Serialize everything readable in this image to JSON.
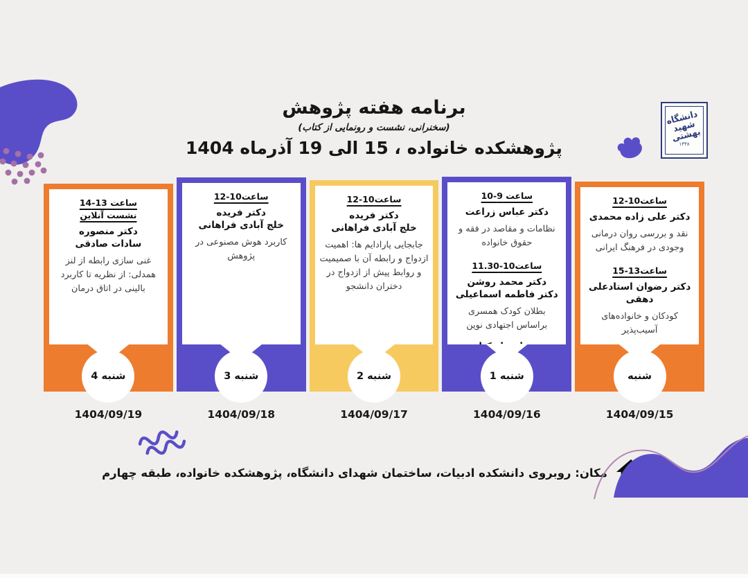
{
  "poster": {
    "header": {
      "title": "برنامه هفته پژوهش",
      "subtitle": "(سخنرانی، نشست و رونمایی از کتاب)",
      "subject_line": "پژوهشکده خانواده ، 15 الی 19 آذرماه 1404"
    },
    "logo": {
      "university_lines": [
        "دانشگاه",
        "شهید",
        "بهشتی"
      ],
      "year": "۱۳۳۸"
    },
    "cards": [
      {
        "day": "شنبه",
        "date": "1404/09/15",
        "color": "orange",
        "sessions": [
          {
            "time": "ساعت10-12",
            "speakers": [
              "دکتر علی زاده محمدی"
            ],
            "topic": "نقد و بررسی روان درمانی وجودی در فرهنگ ایرانی"
          },
          {
            "time": "ساعت13-15",
            "speakers": [
              "دکتر رضوان استادعلی دهقی"
            ],
            "topic": "کودکان و خانواده‌های آسیب‌پذیر"
          }
        ]
      },
      {
        "day": "1 شنبه",
        "date": "1404/09/16",
        "color": "purple",
        "sessions": [
          {
            "time": "ساعت 9-10",
            "speakers": [
              "دکتر عباس زراعت"
            ],
            "topic": "نظامات و مقاصد در فقه و حقوق خانواده"
          },
          {
            "time": "ساعت10-11.30",
            "speakers": [
              "دکتر محمد روشن",
              "دکتر فاطمه اسماعیلی"
            ],
            "topic": "بطلان کودک همسری براساس اجتهادی نوین",
            "footnote": "رونمایی از کتاب"
          }
        ]
      },
      {
        "day": "2 شنبه",
        "date": "1404/09/17",
        "color": "yellow",
        "sessions": [
          {
            "time": "ساعت10-12",
            "speakers": [
              "دکتر فریده",
              "خلج آبادی فراهانی"
            ],
            "topic": "جابجایی پارادایم ها: اهمیت ازدواج و رابطه آن با صمیمیت و روابط پیش از ازدواج در دختران دانشجو"
          }
        ]
      },
      {
        "day": "3 شنبه",
        "date": "1404/09/18",
        "color": "purple",
        "sessions": [
          {
            "time": "ساعت10-12",
            "speakers": [
              "دکتر فریده",
              "خلج آبادی فراهانی"
            ],
            "topic": "کاربرد هوش مصنوعی در پژوهش"
          }
        ]
      },
      {
        "day": "4 شنبه",
        "date": "1404/09/19",
        "color": "orange",
        "sessions": [
          {
            "time": "ساعت 13-14",
            "time2": "نشست آنلاین",
            "speakers": [
              "دکتر منصوره",
              "سادات صادقی"
            ],
            "topic": "غنی سازی رابطه از لنز همدلی: از نظریه تا کاربرد بالینی در اتاق درمان"
          }
        ]
      }
    ],
    "footer": {
      "location": "مکان: روبروی دانشکده ادبیات، ساختمان شهدای دانشگاه، پژوهشکده خانواده، طبقه چهارم"
    },
    "colors": {
      "orange": "#ED7C2F",
      "purple": "#5A4EC8",
      "yellow": "#F7CA60",
      "navy": "#2C3B78",
      "mauve_dots": "#A470A6",
      "background": "#F0EFED"
    }
  }
}
